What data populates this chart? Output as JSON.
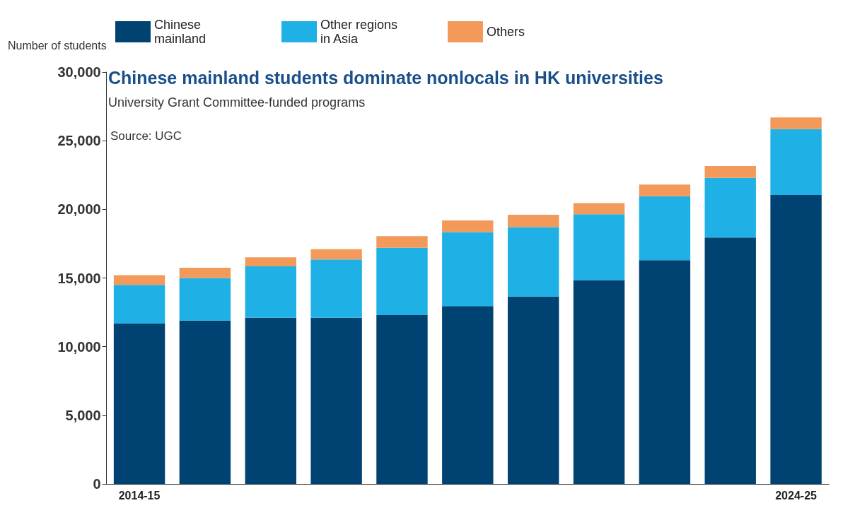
{
  "chart_data": {
    "type": "bar",
    "title": "Chinese mainland students dominate nonlocals in HK universities",
    "subtitle": "University Grant Committee-funded programs",
    "annotations": [
      "Source: UGC"
    ],
    "ylabel": "Number of students",
    "categories": [
      "2014-15",
      null,
      null,
      null,
      null,
      null,
      null,
      null,
      null,
      null,
      "2024-25"
    ],
    "stacked": true,
    "series": [
      {
        "name": "Chinese mainland",
        "color": "#004272",
        "values": [
          11700,
          11900,
          12100,
          12100,
          12300,
          12950,
          13650,
          14850,
          16300,
          17950,
          21050
        ]
      },
      {
        "name": "Other regions in Asia",
        "color": "#1fb0e6",
        "values": [
          2800,
          3100,
          3750,
          4250,
          4900,
          5400,
          5050,
          4800,
          4650,
          4350,
          4800
        ]
      },
      {
        "name": "Others",
        "color": "#f39a5a",
        "values": [
          700,
          750,
          650,
          750,
          850,
          850,
          900,
          800,
          850,
          850,
          850
        ]
      }
    ],
    "ylim": [
      0,
      30000
    ],
    "yticks": [
      0,
      {
        "value": 5000,
        "label": "5,000"
      },
      {
        "value": 10000,
        "label": "10,000"
      },
      {
        "value": 15000,
        "label": "15,000"
      },
      {
        "value": 20000,
        "label": "20,000"
      },
      {
        "value": 25000,
        "label": "25,000"
      },
      {
        "value": 30000,
        "label": "30,000"
      }
    ],
    "grid": false,
    "legend": "top"
  }
}
